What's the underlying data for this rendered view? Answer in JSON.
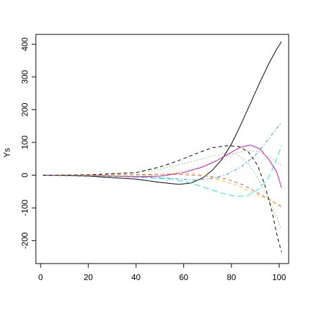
{
  "chart_data": {
    "type": "line",
    "title": "",
    "xlabel": "",
    "ylabel": "Ys",
    "xlim": [
      -2,
      104
    ],
    "ylim": [
      -270,
      430
    ],
    "x_ticks": [
      0,
      20,
      40,
      60,
      80,
      100
    ],
    "y_ticks": [
      -200,
      -100,
      0,
      100,
      200,
      300,
      400
    ],
    "grid": false,
    "legend": "none",
    "series": [
      {
        "color": "#000000",
        "dash": "solid",
        "points": [
          [
            1,
            0
          ],
          [
            20,
            -3
          ],
          [
            40,
            -12
          ],
          [
            50,
            -22
          ],
          [
            58,
            -28
          ],
          [
            63,
            -24
          ],
          [
            68,
            -8
          ],
          [
            72,
            15
          ],
          [
            76,
            48
          ],
          [
            80,
            95
          ],
          [
            84,
            155
          ],
          [
            88,
            220
          ],
          [
            92,
            285
          ],
          [
            96,
            345
          ],
          [
            99,
            385
          ],
          [
            101,
            408
          ]
        ]
      },
      {
        "color": "#df536b",
        "dash": "dashed",
        "points": [
          [
            1,
            0
          ],
          [
            20,
            0
          ],
          [
            40,
            2
          ],
          [
            55,
            3
          ],
          [
            65,
            0
          ],
          [
            72,
            -5
          ],
          [
            78,
            -12
          ],
          [
            85,
            -30
          ],
          [
            90,
            -50
          ],
          [
            95,
            -70
          ],
          [
            101,
            -97
          ]
        ]
      },
      {
        "color": "#61d04f",
        "dash": "dotted",
        "points": [
          [
            1,
            0
          ],
          [
            20,
            1
          ],
          [
            40,
            8
          ],
          [
            50,
            18
          ],
          [
            60,
            35
          ],
          [
            70,
            55
          ],
          [
            78,
            68
          ],
          [
            82,
            65
          ],
          [
            86,
            45
          ],
          [
            90,
            5
          ],
          [
            94,
            -50
          ],
          [
            98,
            -110
          ],
          [
            101,
            -165
          ]
        ]
      },
      {
        "color": "#2297e6",
        "dash": "dotdash",
        "points": [
          [
            1,
            0
          ],
          [
            20,
            -2
          ],
          [
            40,
            -5
          ],
          [
            55,
            -10
          ],
          [
            65,
            -15
          ],
          [
            72,
            -10
          ],
          [
            78,
            2
          ],
          [
            84,
            25
          ],
          [
            90,
            60
          ],
          [
            95,
            105
          ],
          [
            101,
            162
          ]
        ]
      },
      {
        "color": "#28e2e5",
        "dash": "longdash",
        "points": [
          [
            1,
            0
          ],
          [
            20,
            -2
          ],
          [
            40,
            -6
          ],
          [
            55,
            -12
          ],
          [
            62,
            -22
          ],
          [
            70,
            -40
          ],
          [
            76,
            -55
          ],
          [
            82,
            -65
          ],
          [
            87,
            -62
          ],
          [
            91,
            -45
          ],
          [
            95,
            -15
          ],
          [
            98,
            30
          ],
          [
            101,
            90
          ]
        ]
      },
      {
        "color": "#cd0bbc",
        "dash": "solid",
        "points": [
          [
            1,
            0
          ],
          [
            20,
            -1
          ],
          [
            40,
            -5
          ],
          [
            50,
            -3
          ],
          [
            60,
            8
          ],
          [
            68,
            25
          ],
          [
            74,
            45
          ],
          [
            80,
            70
          ],
          [
            84,
            86
          ],
          [
            88,
            92
          ],
          [
            92,
            80
          ],
          [
            96,
            45
          ],
          [
            99,
            10
          ],
          [
            101,
            -38
          ]
        ]
      },
      {
        "color": "#f5c710",
        "dash": "dashed",
        "points": [
          [
            1,
            0
          ],
          [
            20,
            -2
          ],
          [
            40,
            -3
          ],
          [
            50,
            2
          ],
          [
            58,
            6
          ],
          [
            65,
            5
          ],
          [
            70,
            -3
          ],
          [
            75,
            -15
          ],
          [
            82,
            -30
          ],
          [
            88,
            -50
          ],
          [
            94,
            -70
          ],
          [
            101,
            -92
          ]
        ]
      },
      {
        "color": "#9e9e9e",
        "dash": "dotted",
        "points": [
          [
            1,
            0
          ],
          [
            20,
            -1
          ],
          [
            40,
            -2
          ],
          [
            55,
            5
          ],
          [
            65,
            20
          ],
          [
            72,
            40
          ],
          [
            78,
            58
          ],
          [
            83,
            70
          ],
          [
            88,
            76
          ],
          [
            92,
            70
          ],
          [
            96,
            55
          ],
          [
            101,
            30
          ]
        ]
      },
      {
        "color": "#000000",
        "dash": "dashed",
        "points": [
          [
            1,
            0
          ],
          [
            20,
            1
          ],
          [
            40,
            8
          ],
          [
            50,
            25
          ],
          [
            58,
            45
          ],
          [
            66,
            68
          ],
          [
            72,
            84
          ],
          [
            78,
            90
          ],
          [
            83,
            88
          ],
          [
            87,
            72
          ],
          [
            91,
            30
          ],
          [
            94,
            -30
          ],
          [
            97,
            -110
          ],
          [
            99,
            -180
          ],
          [
            101,
            -235
          ]
        ]
      }
    ]
  }
}
